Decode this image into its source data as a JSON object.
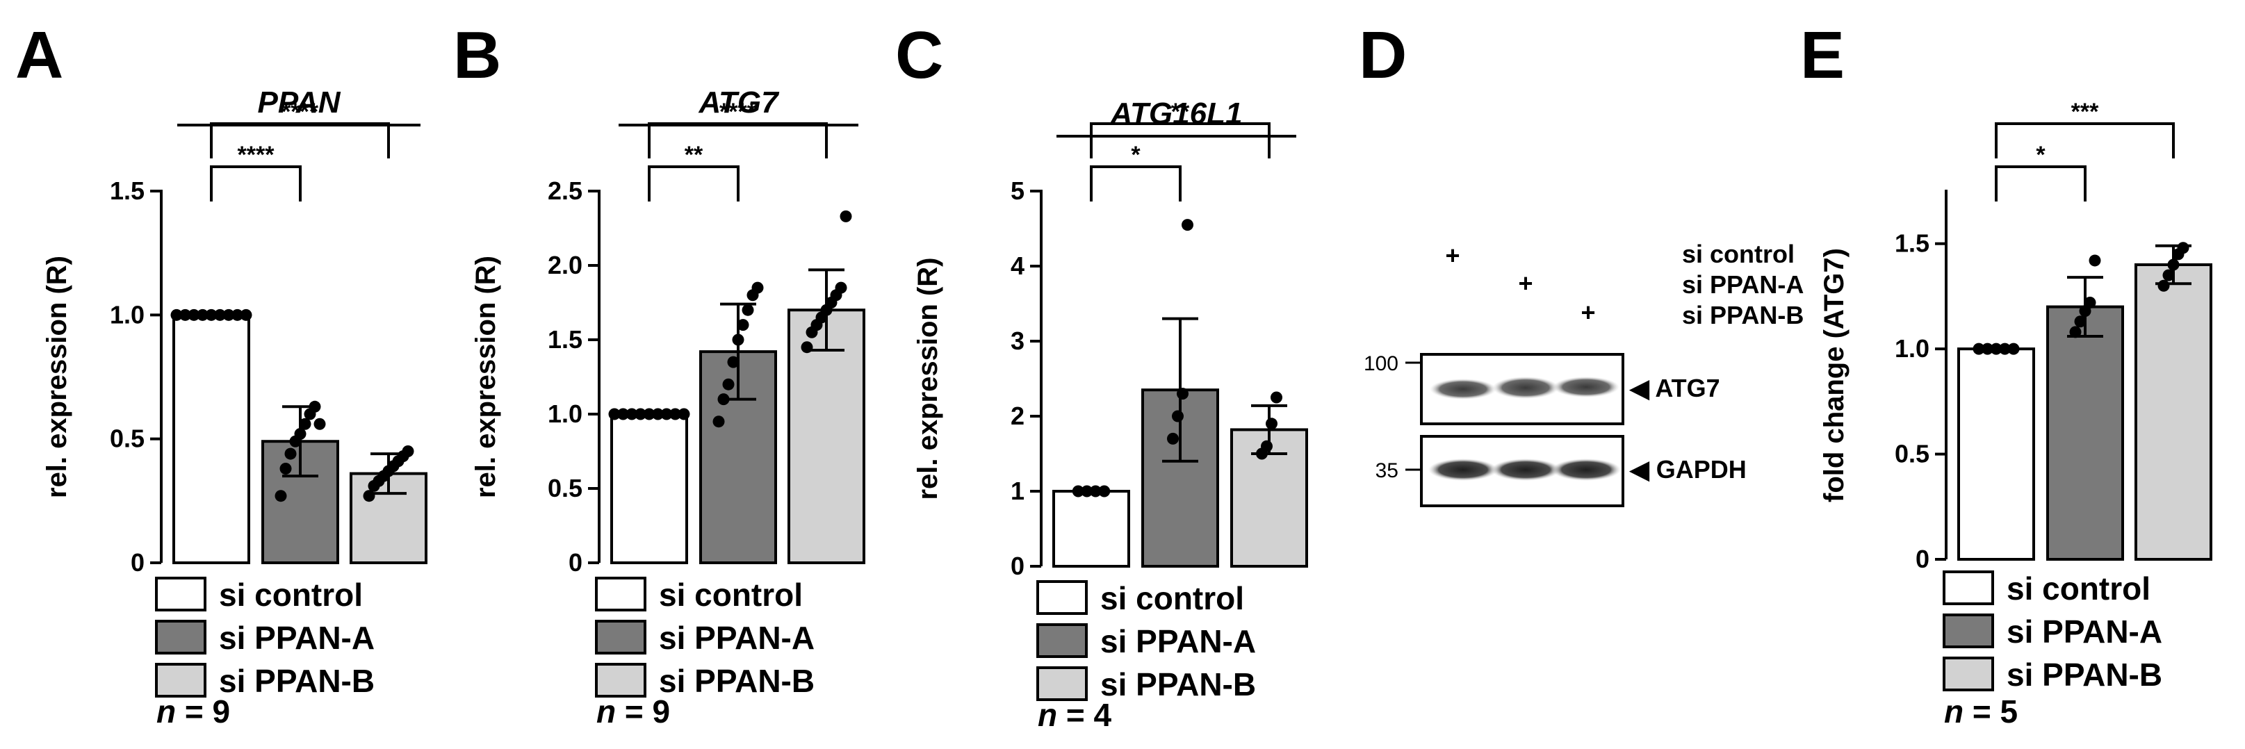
{
  "colors": {
    "si_control": "#ffffff",
    "si_PPAN_A": "#7a7a7a",
    "si_PPAN_B": "#d2d2d2",
    "axis": "#000000"
  },
  "chart_data": [
    {
      "panel": "A",
      "type": "bar",
      "title": "PPAN",
      "ylabel": "rel. expression (R)",
      "ylim": [
        0,
        1.5
      ],
      "yticks": [
        "0",
        "0.5",
        "1.0",
        "1.5"
      ],
      "categories": [
        "si control",
        "si PPAN-A",
        "si PPAN-B"
      ],
      "values": [
        1.0,
        0.49,
        0.36
      ],
      "errors": [
        0,
        0.14,
        0.08
      ],
      "points": [
        [
          1,
          1,
          1,
          1,
          1,
          1,
          1,
          1,
          1
        ],
        [
          0.27,
          0.38,
          0.44,
          0.49,
          0.52,
          0.56,
          0.6,
          0.63,
          0.56
        ],
        [
          0.27,
          0.31,
          0.33,
          0.35,
          0.37,
          0.39,
          0.41,
          0.43,
          0.45
        ]
      ],
      "significance": [
        {
          "from": 0,
          "to": 1,
          "label": "****"
        },
        {
          "from": 0,
          "to": 2,
          "label": "****"
        }
      ],
      "n_label": "n",
      "n_value": "= 9"
    },
    {
      "panel": "B",
      "type": "bar",
      "title": "ATG7",
      "ylabel": "rel. expression (R)",
      "ylim": [
        0,
        2.5
      ],
      "yticks": [
        "0",
        "0.5",
        "1.0",
        "1.5",
        "2.0",
        "2.5"
      ],
      "categories": [
        "si control",
        "si PPAN-A",
        "si PPAN-B"
      ],
      "values": [
        1.0,
        1.42,
        1.7
      ],
      "errors": [
        0,
        0.32,
        0.27
      ],
      "points": [
        [
          1,
          1,
          1,
          1,
          1,
          1,
          1,
          1,
          1
        ],
        [
          0.95,
          1.1,
          1.2,
          1.35,
          1.5,
          1.6,
          1.7,
          1.8,
          1.85
        ],
        [
          1.45,
          1.55,
          1.6,
          1.65,
          1.7,
          1.75,
          1.8,
          1.85,
          2.33
        ]
      ],
      "significance": [
        {
          "from": 0,
          "to": 1,
          "label": "**"
        },
        {
          "from": 0,
          "to": 2,
          "label": "****"
        }
      ],
      "n_label": "n",
      "n_value": "= 9"
    },
    {
      "panel": "C",
      "type": "bar",
      "title": "ATG16L1",
      "ylabel": "rel. expression (R)",
      "ylim": [
        0,
        5
      ],
      "yticks": [
        "0",
        "1",
        "2",
        "3",
        "4",
        "5"
      ],
      "categories": [
        "si control",
        "si PPAN-A",
        "si PPAN-B"
      ],
      "values": [
        1.0,
        2.35,
        1.82
      ],
      "errors": [
        0,
        0.95,
        0.32
      ],
      "points": [
        [
          1,
          1,
          1,
          1
        ],
        [
          1.7,
          2.0,
          2.3,
          4.55
        ],
        [
          1.5,
          1.6,
          1.9,
          2.25
        ]
      ],
      "significance": [
        {
          "from": 0,
          "to": 1,
          "label": "*"
        },
        {
          "from": 0,
          "to": 2,
          "label": "**"
        }
      ],
      "n_label": "n",
      "n_value": "= 4"
    },
    {
      "panel": "E",
      "type": "bar",
      "title": "",
      "ylabel": "fold change (ATG7)",
      "ylim": [
        0,
        1.75
      ],
      "yticks": [
        "0",
        "0.5",
        "1.0",
        "1.5"
      ],
      "categories": [
        "si control",
        "si PPAN-A",
        "si PPAN-B"
      ],
      "values": [
        1.0,
        1.2,
        1.4
      ],
      "errors": [
        0,
        0.14,
        0.09
      ],
      "points": [
        [
          1,
          1,
          1,
          1,
          1
        ],
        [
          1.08,
          1.13,
          1.18,
          1.22,
          1.42
        ],
        [
          1.3,
          1.35,
          1.4,
          1.45,
          1.48
        ]
      ],
      "significance": [
        {
          "from": 0,
          "to": 1,
          "label": "*"
        },
        {
          "from": 0,
          "to": 2,
          "label": "***"
        }
      ],
      "n_label": "n",
      "n_value": "= 5"
    }
  ],
  "blot": {
    "panel": "D",
    "conditions": [
      "si control",
      "si PPAN-A",
      "si PPAN-B"
    ],
    "plus": "+",
    "bands": [
      {
        "marker": "100",
        "label": "◀ ATG7"
      },
      {
        "marker": "35",
        "label": "◀ GAPDH"
      }
    ]
  }
}
